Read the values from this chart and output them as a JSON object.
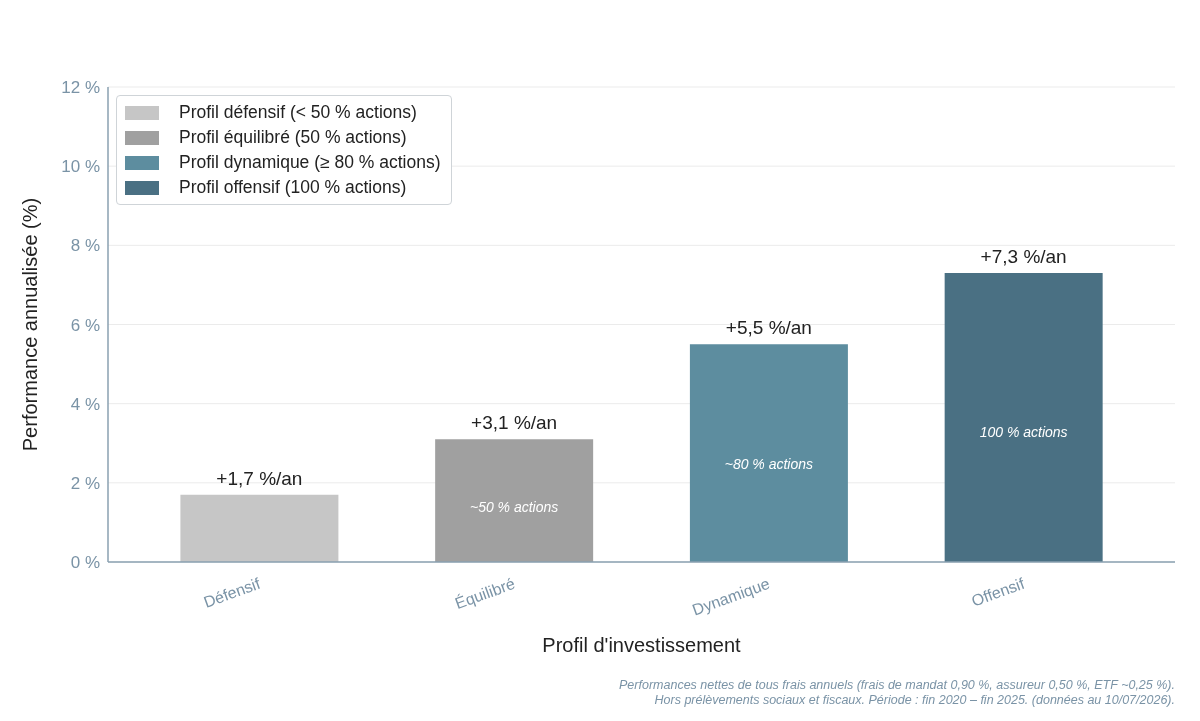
{
  "chart_data": {
    "type": "bar",
    "xlabel": "Profil d'investissement",
    "ylabel": "Performance annualisée (%)",
    "categories": [
      "Défensif",
      "Équilibré",
      "Dynamique",
      "Offensif"
    ],
    "series": [
      {
        "name": "Profil défensif (< 50 % actions)",
        "color": "#c6c6c6",
        "values": [
          1.7,
          null,
          null,
          null
        ],
        "value_labels": [
          "+1,7 %/an",
          null,
          null,
          null
        ]
      },
      {
        "name": "Profil équilibré (50 % actions)",
        "color": "#a0a0a0",
        "values": [
          null,
          3.1,
          null,
          null
        ],
        "value_labels": [
          null,
          "+3,1 %/an",
          null,
          null
        ]
      },
      {
        "name": "Profil dynamique (≥ 80 % actions)",
        "color": "#5d8d9f",
        "values": [
          null,
          null,
          5.5,
          null
        ],
        "value_labels": [
          null,
          null,
          "+5,5 %/an",
          null
        ]
      },
      {
        "name": "Profil offensif (100 % actions)",
        "color": "#4a7083",
        "values": [
          null,
          null,
          null,
          7.3
        ],
        "value_labels": [
          null,
          null,
          null,
          "+7,3 %/an"
        ]
      }
    ],
    "stacked": true,
    "ylim": [
      0,
      12
    ],
    "yticks": [
      {
        "value": 0,
        "label": "0 %"
      },
      {
        "value": 2,
        "label": "2 %"
      },
      {
        "value": 4,
        "label": "4 %"
      },
      {
        "value": 6,
        "label": "6 %"
      },
      {
        "value": 8,
        "label": "8 %"
      },
      {
        "value": 10,
        "label": "10 %"
      },
      {
        "value": 12,
        "label": "12 %"
      }
    ],
    "grid": "y",
    "legend": "top left",
    "annotations": [
      "~50 % actions",
      "~80 % actions",
      "100 % actions",
      "Performances nettes de tous frais annuels (frais de mandat 0,90 %, assureur 0,50 %, ETF ~0,25 %).",
      "Hors prélèvements sociaux et fiscaux. Période : fin 2020 – fin 2025. (données au 10/07/2026)."
    ]
  }
}
